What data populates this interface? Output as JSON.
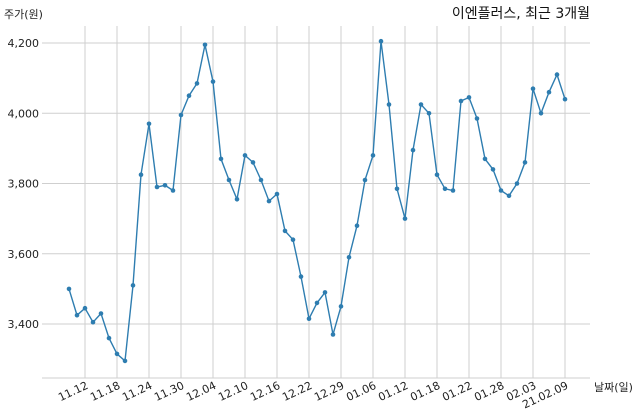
{
  "chart_data": {
    "type": "line",
    "title": "이엔플러스, 최근 3개월",
    "xlabel": "날짜(일)",
    "ylabel": "주가(원)",
    "ylim": [
      3240,
      4270
    ],
    "grid": true,
    "y_ticks": [
      3400,
      3600,
      3800,
      4000,
      4200
    ],
    "y_tick_labels": [
      "3,400",
      "3,600",
      "3,800",
      "4,000",
      "4,200"
    ],
    "x_tick_labels": [
      "11.12",
      "11.18",
      "11.24",
      "11.30",
      "12.04",
      "12.10",
      "12.16",
      "12.22",
      "12.29",
      "01.06",
      "01.12",
      "01.18",
      "01.22",
      "01.28",
      "02.03",
      "21.02.09"
    ],
    "x_tick_index": [
      2,
      6,
      10,
      14,
      18,
      22,
      26,
      30,
      34,
      38,
      42,
      46,
      50,
      54,
      58,
      62
    ],
    "x_index": [
      0,
      1,
      2,
      3,
      4,
      5,
      6,
      7,
      8,
      9,
      10,
      11,
      12,
      13,
      14,
      15,
      16,
      17,
      18,
      19,
      20,
      21,
      22,
      23,
      24,
      25,
      26,
      27,
      28,
      29,
      30,
      31,
      32,
      33,
      34,
      35,
      36,
      37,
      38,
      39,
      40,
      41,
      42,
      43,
      44,
      45,
      46,
      47,
      48,
      49,
      50,
      51,
      52,
      53,
      54,
      55,
      56,
      57,
      58,
      59,
      60,
      61,
      62
    ],
    "values": [
      3500,
      3425,
      3445,
      3405,
      3430,
      3360,
      3315,
      3295,
      3510,
      3825,
      3970,
      3790,
      3795,
      3780,
      3995,
      4050,
      4085,
      4195,
      4090,
      3870,
      3810,
      3755,
      3880,
      3860,
      3810,
      3750,
      3770,
      3665,
      3640,
      3535,
      3415,
      3460,
      3490,
      3370,
      3450,
      3590,
      3680,
      3810,
      3880,
      4205,
      4025,
      3785,
      3700,
      3895,
      4025,
      4000,
      3825,
      3785,
      3780,
      4035,
      4045,
      3985,
      3870,
      3840,
      3780,
      3765,
      3800,
      3860,
      4070,
      4000,
      4060,
      4110,
      4040
    ]
  }
}
